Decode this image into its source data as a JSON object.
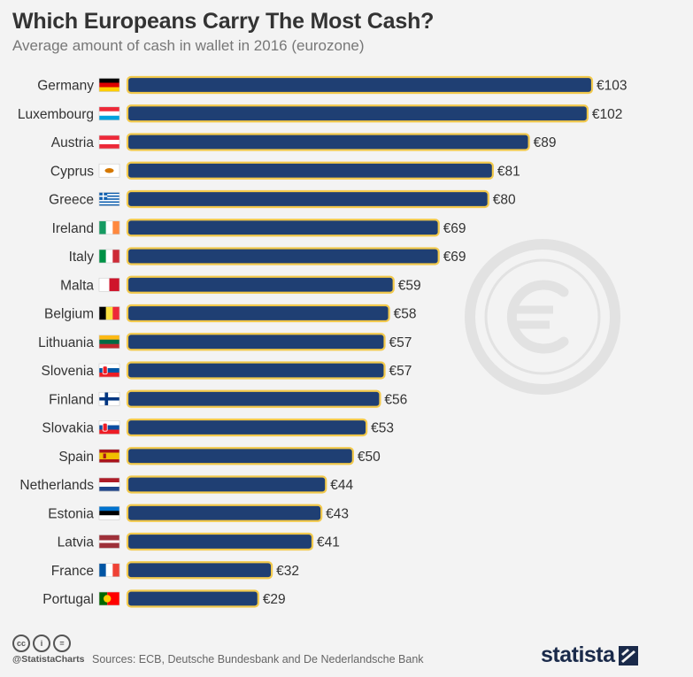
{
  "header": {
    "title": "Which Europeans Carry The Most Cash?",
    "subtitle": "Average amount of cash in wallet in 2016 (eurozone)"
  },
  "chart_data": {
    "type": "bar",
    "orientation": "horizontal",
    "title": "Which Europeans Carry The Most Cash?",
    "subtitle": "Average amount of cash in wallet in 2016 (eurozone)",
    "categories": [
      "Germany",
      "Luxembourg",
      "Austria",
      "Cyprus",
      "Greece",
      "Ireland",
      "Italy",
      "Malta",
      "Belgium",
      "Lithuania",
      "Slovenia",
      "Finland",
      "Slovakia",
      "Spain",
      "Netherlands",
      "Estonia",
      "Latvia",
      "France",
      "Portugal"
    ],
    "values": [
      103,
      102,
      89,
      81,
      80,
      69,
      69,
      59,
      58,
      57,
      57,
      56,
      53,
      50,
      44,
      43,
      41,
      32,
      29
    ],
    "value_prefix": "€",
    "value_labels": [
      "€103",
      "€102",
      "€89",
      "€81",
      "€80",
      "€69",
      "€69",
      "€59",
      "€58",
      "€57",
      "€57",
      "€56",
      "€53",
      "€50",
      "€44",
      "€43",
      "€41",
      "€32",
      "€29"
    ],
    "xlabel": "",
    "ylabel": "",
    "xlim": [
      0,
      103
    ],
    "grid": false,
    "legend": "none",
    "colors": {
      "bar": "#1f3f73",
      "bar_outline": "#f2c94c"
    },
    "flags": [
      "germany-flag",
      "luxembourg-flag",
      "austria-flag",
      "cyprus-flag",
      "greece-flag",
      "ireland-flag",
      "italy-flag",
      "malta-flag",
      "belgium-flag",
      "lithuania-flag",
      "slovenia-flag",
      "finland-flag",
      "slovakia-flag",
      "spain-flag",
      "netherlands-flag",
      "estonia-flag",
      "latvia-flag",
      "france-flag",
      "portugal-flag"
    ]
  },
  "footer": {
    "license_icons": [
      "cc-icon",
      "by-icon",
      "nd-icon"
    ],
    "license_glyphs": [
      "cc",
      "i",
      "="
    ],
    "handle": "@StatistaCharts",
    "sources": "Sources: ECB, Deutsche Bundesbank and De Nederlandsche Bank",
    "brand": "statista"
  },
  "watermark": "euro-icon"
}
